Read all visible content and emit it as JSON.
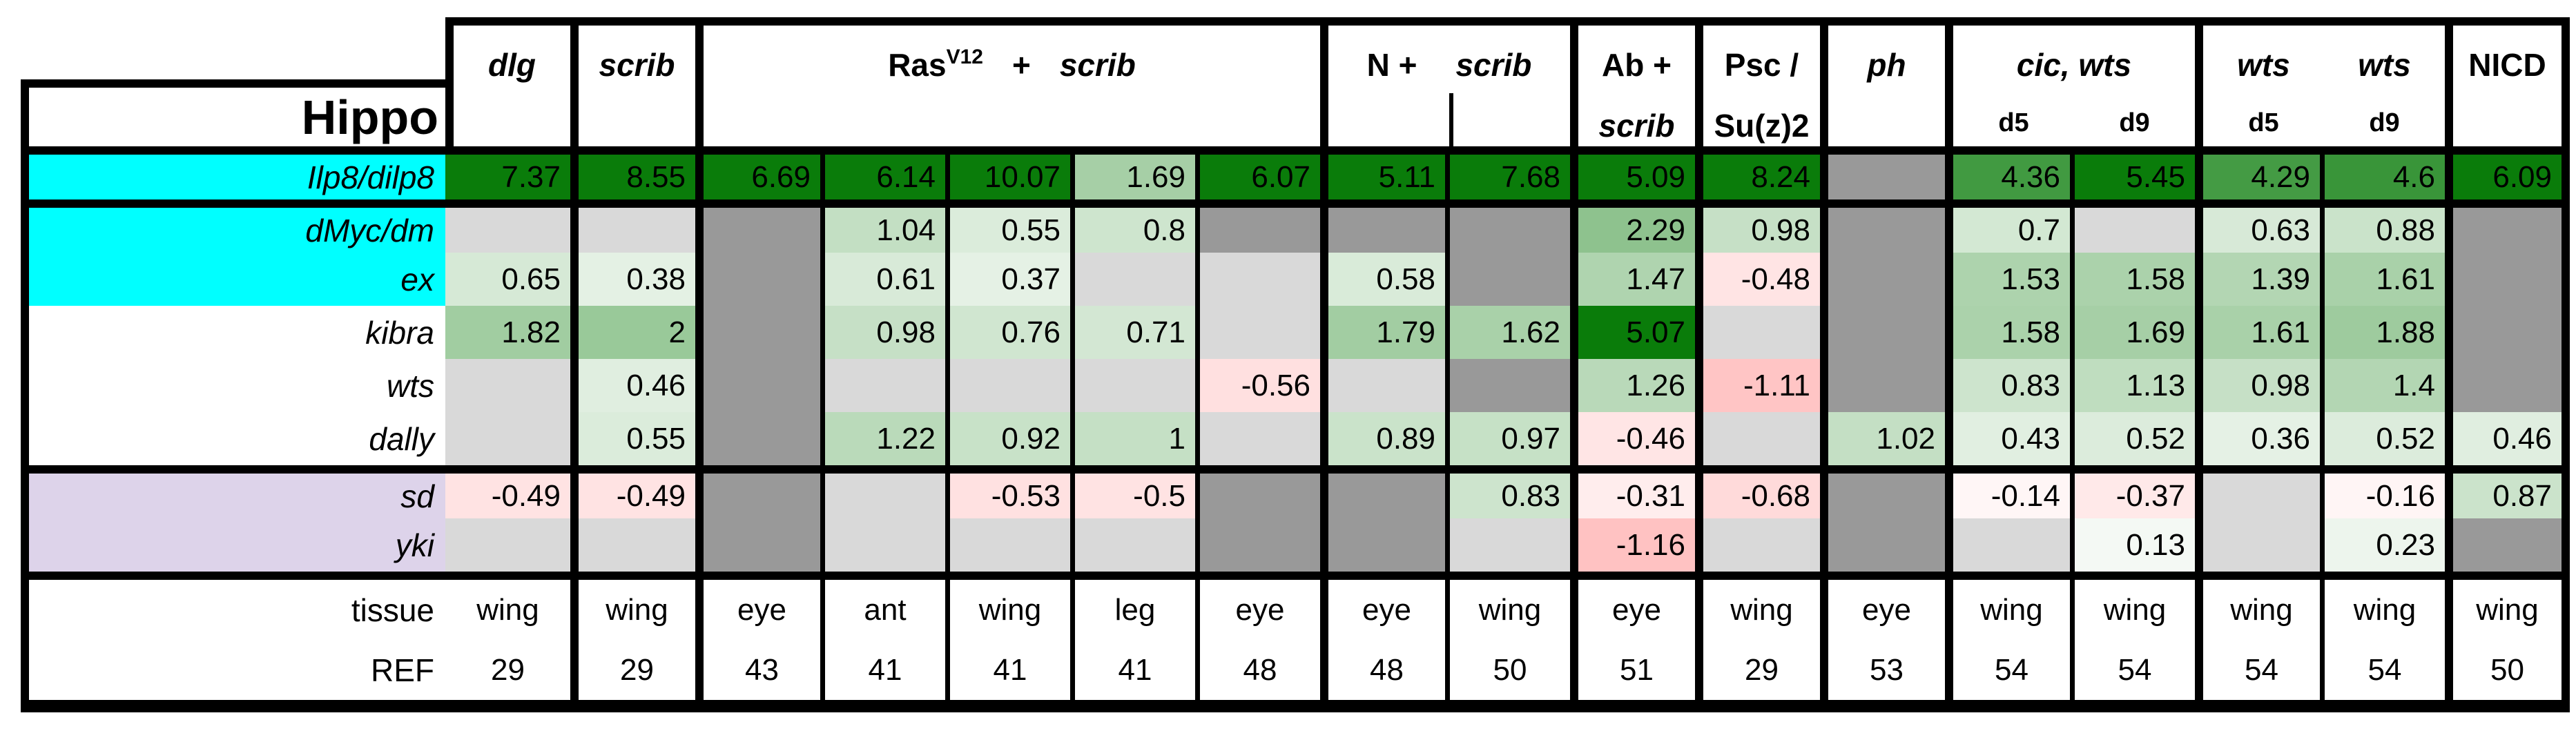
{
  "chart_data": {
    "type": "heatmap",
    "title": "Hippo",
    "corner_title": "Hippo",
    "columns": [
      {
        "group": "dlg",
        "tissue": "wing",
        "ref": "29"
      },
      {
        "group": "scrib",
        "tissue": "wing",
        "ref": "29"
      },
      {
        "group": "RasV12 + scrib",
        "tissue": "eye",
        "ref": "43"
      },
      {
        "group": "RasV12 + scrib",
        "tissue": "ant",
        "ref": "41"
      },
      {
        "group": "RasV12 + scrib",
        "tissue": "wing",
        "ref": "41"
      },
      {
        "group": "RasV12 + scrib",
        "tissue": "leg",
        "ref": "41"
      },
      {
        "group": "RasV12 + scrib",
        "tissue": "eye",
        "ref": "48"
      },
      {
        "group": "N + scrib",
        "tissue": "eye",
        "ref": "48"
      },
      {
        "group": "N + scrib",
        "tissue": "wing",
        "ref": "50"
      },
      {
        "group": "Ab + scrib",
        "tissue": "eye",
        "ref": "51"
      },
      {
        "group": "Psc / Su(z)2",
        "tissue": "wing",
        "ref": "29"
      },
      {
        "group": "ph",
        "tissue": "eye",
        "ref": "53"
      },
      {
        "group": "cic, wts d5",
        "tissue": "wing",
        "ref": "54"
      },
      {
        "group": "cic, wts d9",
        "tissue": "wing",
        "ref": "54"
      },
      {
        "group": "wts d5",
        "tissue": "wing",
        "ref": "54"
      },
      {
        "group": "wts d9",
        "tissue": "wing",
        "ref": "54"
      },
      {
        "group": "NICD",
        "tissue": "wing",
        "ref": "50"
      }
    ],
    "header_groups": [
      {
        "name": "dlg",
        "span": 1,
        "main": [
          [
            "bi",
            "dlg"
          ]
        ]
      },
      {
        "name": "scrib",
        "span": 1,
        "main": [
          [
            "bi",
            "scrib"
          ]
        ]
      },
      {
        "name": "ras-v12-scrib",
        "span": 5,
        "main": [
          [
            "b",
            "Ras"
          ],
          [
            "sup",
            "V12"
          ],
          [
            "gap",
            ""
          ],
          [
            "b",
            "+"
          ],
          [
            "gap",
            ""
          ],
          [
            "bi",
            "scrib"
          ]
        ]
      },
      {
        "name": "n-scrib",
        "span": 2,
        "divider": true,
        "main": [
          [
            "b",
            "N +"
          ],
          [
            "gap2",
            ""
          ],
          [
            "bi",
            "scrib"
          ]
        ]
      },
      {
        "name": "ab-scrib",
        "span": 1,
        "main": [
          [
            "b",
            "Ab +"
          ]
        ],
        "second": [
          [
            "bi",
            "scrib"
          ]
        ]
      },
      {
        "name": "psc-suz2",
        "span": 1,
        "main": [
          [
            "b",
            "Psc /"
          ]
        ],
        "second": [
          [
            "b",
            "Su(z)2"
          ]
        ]
      },
      {
        "name": "ph",
        "span": 1,
        "main": [
          [
            "bi",
            "ph"
          ]
        ]
      },
      {
        "name": "cic-wts",
        "span": 2,
        "main": [
          [
            "bi",
            "cic, wts"
          ]
        ],
        "sub": [
          "d5",
          "d9"
        ]
      },
      {
        "name": "wts-wts",
        "span": 2,
        "spread": true,
        "main": [
          [
            "bi",
            "wts"
          ],
          [
            "bi",
            "wts"
          ]
        ],
        "sub": [
          "d5",
          "d9"
        ]
      },
      {
        "name": "nicd",
        "span": 1,
        "main": [
          [
            "b",
            "NICD"
          ]
        ]
      }
    ],
    "rows": [
      {
        "gene": "Ilp8/dilp8",
        "band": "cyan",
        "cells": [
          "7.37",
          "8.55",
          "6.69",
          "6.14",
          "10.07",
          "1.69",
          "6.07",
          "5.11",
          "7.68",
          "5.09",
          "8.24",
          "#",
          "4.36",
          "5.45",
          "4.29",
          "4.6",
          "6.09"
        ]
      },
      {
        "gene": "dMyc/dm",
        "band": "cyan",
        "cells": [
          "",
          "",
          "#",
          "1.04",
          "0.55",
          "0.8",
          "#",
          "#",
          "#",
          "2.29",
          "0.98",
          "#",
          "0.7",
          "",
          "0.63",
          "0.88",
          "#"
        ]
      },
      {
        "gene": "ex",
        "band": "cyan",
        "cells": [
          "0.65",
          "0.38",
          "#",
          "0.61",
          "0.37",
          "",
          "",
          "0.58",
          "#",
          "1.47",
          "-0.48",
          "#",
          "1.53",
          "1.58",
          "1.39",
          "1.61",
          "#"
        ]
      },
      {
        "gene": "kibra",
        "band": "white",
        "cells": [
          "1.82",
          "2",
          "#",
          "0.98",
          "0.76",
          "0.71",
          "",
          "1.79",
          "1.62",
          "5.07",
          "",
          "#",
          "1.58",
          "1.69",
          "1.61",
          "1.88",
          "#"
        ]
      },
      {
        "gene": "wts",
        "band": "white",
        "cells": [
          "",
          "0.46",
          "#",
          "",
          "",
          "",
          "-0.56",
          "",
          "#",
          "1.26",
          "-1.11",
          "#",
          "0.83",
          "1.13",
          "0.98",
          "1.4",
          "#"
        ]
      },
      {
        "gene": "dally",
        "band": "white",
        "cells": [
          "",
          "0.55",
          "#",
          "1.22",
          "0.92",
          "1",
          "",
          "0.89",
          "0.97",
          "-0.46",
          "",
          "1.02",
          "0.43",
          "0.52",
          "0.36",
          "0.52",
          "0.46"
        ]
      },
      {
        "gene": "sd",
        "band": "lavender",
        "cells": [
          "-0.49",
          "-0.49",
          "#",
          "",
          "-0.53",
          "-0.5",
          "#",
          "#",
          "0.83",
          "-0.31",
          "-0.68",
          "#",
          "-0.14",
          "-0.37",
          "",
          "-0.16",
          "0.87"
        ]
      },
      {
        "gene": "yki",
        "band": "lavender",
        "cells": [
          "",
          "",
          "#",
          "",
          "",
          "",
          "#",
          "#",
          "",
          "-1.16",
          "",
          "#",
          "",
          "0.13",
          "",
          "0.23",
          "#"
        ]
      }
    ],
    "tissue_row": {
      "label": "tissue",
      "values": [
        "wing",
        "wing",
        "eye",
        "ant",
        "wing",
        "leg",
        "eye",
        "eye",
        "wing",
        "eye",
        "wing",
        "eye",
        "wing",
        "wing",
        "wing",
        "wing",
        "wing"
      ]
    },
    "ref_row": {
      "label": "REF",
      "values": [
        "29",
        "29",
        "43",
        "41",
        "41",
        "41",
        "48",
        "48",
        "50",
        "51",
        "29",
        "53",
        "54",
        "54",
        "54",
        "54",
        "50"
      ]
    },
    "legend_note_missing_light": "",
    "legend_note_missing_dark": "#",
    "colors": {
      "band_cyan": "#00ffff",
      "band_lavender": "#ddd3ea",
      "na_light": "#d9d9d9",
      "na_dark": "#999999",
      "positive_max_green": "#0a7c0a",
      "negative_max_pink": "#ff9c9c",
      "border_black": "#000000"
    }
  }
}
